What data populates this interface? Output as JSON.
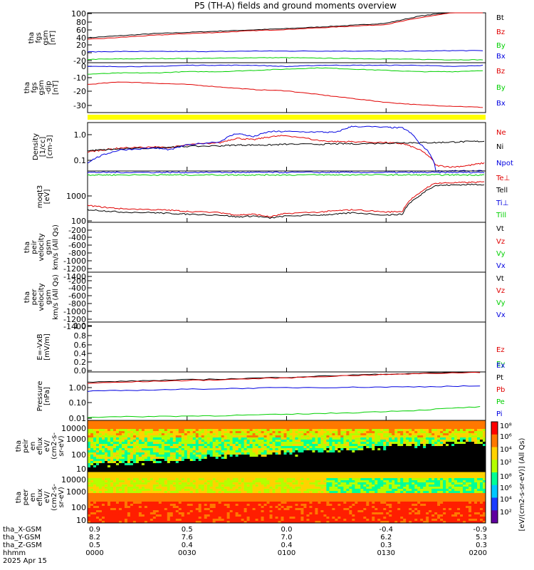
{
  "title": "P5 (TH-A) fields and ground moments overview",
  "time": {
    "x_ticks": [
      {
        "gsm_x": "0.9",
        "gsm_y": "8.2",
        "gsm_z": "0.5",
        "hhmm": "0000"
      },
      {
        "gsm_x": "0.5",
        "gsm_y": "7.6",
        "gsm_z": "0.4",
        "hhmm": "0030"
      },
      {
        "gsm_x": "0.0",
        "gsm_y": "7.0",
        "gsm_z": "0.4",
        "hhmm": "0100"
      },
      {
        "gsm_x": "-0.4",
        "gsm_y": "6.2",
        "gsm_z": "0.3",
        "hhmm": "0130"
      },
      {
        "gsm_x": "-0.9",
        "gsm_y": "5.3",
        "gsm_z": "0.3",
        "hhmm": "0200"
      }
    ],
    "row_labels": [
      "tha_X-GSM",
      "tha_Y-GSM",
      "tha_Z-GSM",
      "hhmm",
      "2025 Apr 15"
    ]
  },
  "colors": {
    "black": "#000000",
    "red": "#e00000",
    "green": "#00d000",
    "blue": "#0000e0",
    "yellow": "#ffff00"
  },
  "chart_data": [
    {
      "type": "line",
      "panel": "fgs_gsm_total",
      "ylabel": [
        "tha",
        "fgs",
        "gsm",
        "[nT]"
      ],
      "yticks": [
        "100",
        "80",
        "60",
        "40",
        "20",
        "0",
        "-20"
      ],
      "ylim": [
        -20,
        100
      ],
      "x": [
        0,
        10,
        20,
        30,
        40,
        50,
        60,
        70,
        80,
        90,
        100,
        110,
        120
      ],
      "series": [
        {
          "name": "Bt",
          "color": "black",
          "values": [
            40,
            45,
            50,
            53,
            56,
            59,
            62,
            66,
            70,
            75,
            92,
            102,
            105
          ]
        },
        {
          "name": "Bz",
          "color": "red",
          "values": [
            36,
            41,
            46,
            50,
            53,
            57,
            60,
            64,
            68,
            72,
            88,
            100,
            104
          ]
        },
        {
          "name": "By",
          "color": "green",
          "values": [
            -12,
            -11,
            -10,
            -10,
            -9,
            -8,
            -8,
            -9,
            -10,
            -11,
            -12,
            -13,
            -13
          ]
        },
        {
          "name": "Bx",
          "color": "blue",
          "values": [
            6,
            7,
            7,
            7,
            7,
            8,
            8,
            8,
            8,
            8,
            8,
            9,
            9
          ]
        }
      ]
    },
    {
      "type": "line",
      "panel": "fgs_gsm_detrended",
      "ylabel": [
        "tha",
        "fgs",
        "gsm",
        "-dip",
        "[nT]"
      ],
      "yticks": [
        "0",
        "-10",
        "-20",
        "-30"
      ],
      "ylim": [
        -37,
        2
      ],
      "x": [
        0,
        10,
        20,
        30,
        40,
        50,
        60,
        70,
        80,
        90,
        100,
        110,
        120
      ],
      "series": [
        {
          "name": "Bz",
          "color": "red",
          "values": [
            -15,
            -13,
            -14,
            -15,
            -17,
            -19,
            -20,
            -23,
            -26,
            -29,
            -31,
            -32,
            -33
          ]
        },
        {
          "name": "By",
          "color": "green",
          "values": [
            -7,
            -6,
            -6,
            -5,
            -5,
            -4,
            -3,
            -2,
            -3,
            -4,
            -5,
            -5,
            -4
          ]
        },
        {
          "name": "Bx",
          "color": "blue",
          "values": [
            -1,
            -1,
            -1,
            0,
            0,
            0,
            -1,
            0,
            0,
            0,
            0,
            -1,
            0
          ]
        }
      ]
    },
    {
      "type": "line",
      "panel": "density",
      "ylabel": [
        "Density",
        "[1/cc]",
        "[cm-3]"
      ],
      "yticks": [
        "1.0",
        "0.1"
      ],
      "yscale": "log",
      "ylim": [
        0.05,
        3
      ],
      "x": [
        0,
        5,
        10,
        20,
        25,
        30,
        40,
        45,
        50,
        55,
        60,
        70,
        75,
        80,
        90,
        95,
        100,
        105,
        110,
        115,
        120
      ],
      "series": [
        {
          "name": "Ne",
          "color": "red",
          "values": [
            0.25,
            0.3,
            0.35,
            0.38,
            0.36,
            0.45,
            0.55,
            0.8,
            0.7,
            0.9,
            1.0,
            0.65,
            0.6,
            0.6,
            0.55,
            0.5,
            0.3,
            0.08,
            0.07,
            0.08,
            0.1
          ]
        },
        {
          "name": "Ni",
          "color": "black",
          "values": [
            0.28,
            0.3,
            0.32,
            0.35,
            0.38,
            0.4,
            0.42,
            0.45,
            0.45,
            0.45,
            0.48,
            0.48,
            0.5,
            0.5,
            0.52,
            0.55,
            0.55,
            0.55,
            0.58,
            0.6,
            0.62
          ]
        },
        {
          "name": "Npot",
          "color": "blue",
          "values": [
            0.1,
            0.2,
            0.3,
            0.35,
            0.3,
            0.45,
            0.6,
            1.2,
            0.9,
            1.4,
            1.4,
            1.35,
            1.3,
            2.2,
            2.0,
            1.9,
            0.5,
            0.05,
            0.05,
            0.05,
            0.05
          ]
        }
      ]
    },
    {
      "type": "line",
      "panel": "temperature",
      "ylabel": [
        "moqt3",
        "[eV]"
      ],
      "yticks": [
        "1000",
        "100"
      ],
      "yscale": "log",
      "ylim": [
        60,
        8000
      ],
      "x": [
        0,
        5,
        10,
        20,
        25,
        30,
        40,
        45,
        50,
        55,
        60,
        70,
        75,
        80,
        90,
        95,
        100,
        105,
        110,
        115,
        120
      ],
      "series": [
        {
          "name": "Te⊥",
          "color": "red",
          "values": [
            300,
            250,
            220,
            200,
            190,
            170,
            150,
            120,
            130,
            100,
            140,
            160,
            180,
            200,
            160,
            170,
            900,
            2500,
            2600,
            2700,
            2800
          ]
        },
        {
          "name": "Tell",
          "color": "black",
          "values": [
            200,
            180,
            160,
            150,
            140,
            130,
            120,
            100,
            110,
            90,
            110,
            120,
            130,
            150,
            120,
            130,
            700,
            2000,
            2100,
            2200,
            2200
          ]
        },
        {
          "name": "Ti⊥",
          "color": "blue",
          "values": [
            7000,
            7000,
            7000,
            7000,
            7000,
            7000,
            7000,
            7000,
            7000,
            7000,
            7000,
            7000,
            7000,
            7000,
            7000,
            7000,
            7000,
            7000,
            7000,
            7000,
            7000
          ]
        },
        {
          "name": "Till",
          "color": "green",
          "values": [
            5500,
            5500,
            5500,
            5500,
            5500,
            5500,
            5500,
            5500,
            5500,
            5500,
            5500,
            5500,
            5500,
            5500,
            5500,
            5500,
            5500,
            5500,
            5500,
            5500,
            5500
          ]
        }
      ]
    },
    {
      "type": "line",
      "panel": "peir_velocity",
      "ylabel": [
        "tha",
        "peir",
        "velocity",
        "gsm",
        "km/s (All Qs)"
      ],
      "yticks": [
        "-200",
        "-400",
        "-600",
        "-800",
        "-1000",
        "-1200",
        "-1400"
      ],
      "ylim": [
        -1450,
        -100
      ],
      "series": [
        {
          "name": "Vt",
          "color": "black"
        },
        {
          "name": "Vz",
          "color": "red"
        },
        {
          "name": "Vy",
          "color": "green"
        },
        {
          "name": "Vx",
          "color": "blue"
        }
      ]
    },
    {
      "type": "line",
      "panel": "peer_velocity",
      "ylabel": [
        "tha",
        "peer",
        "velocity",
        "gsm",
        "km/s (All Qs)"
      ],
      "yticks": [
        "-200",
        "-400",
        "-600",
        "-800",
        "-1000",
        "-1200",
        "-1400"
      ],
      "ylim": [
        -1450,
        -100
      ],
      "series": [
        {
          "name": "Vt",
          "color": "black"
        },
        {
          "name": "Vz",
          "color": "red"
        },
        {
          "name": "Vy",
          "color": "green"
        },
        {
          "name": "Vx",
          "color": "blue"
        }
      ]
    },
    {
      "type": "line",
      "panel": "efield",
      "ylabel": [
        "E=-VxB",
        "[mV/m]"
      ],
      "yticks": [
        "1.0",
        "0.8",
        "0.6",
        "0.4",
        "0.2",
        "0.0"
      ],
      "ylim": [
        0,
        1
      ],
      "series": [
        {
          "name": "Ez",
          "color": "red"
        },
        {
          "name": "Ey",
          "color": "green"
        },
        {
          "name": "Ex",
          "color": "blue"
        }
      ]
    },
    {
      "type": "line",
      "panel": "pressure",
      "ylabel": [
        "Pressure",
        "[nPa]"
      ],
      "yticks": [
        "1.00",
        "0.10",
        "0.01"
      ],
      "yscale": "log",
      "ylim": [
        0.006,
        3
      ],
      "x": [
        0,
        20,
        40,
        60,
        80,
        100,
        120
      ],
      "series": [
        {
          "name": "Pt",
          "color": "black",
          "values": [
            0.8,
            1.0,
            1.2,
            1.5,
            2.0,
            2.5,
            3.0
          ]
        },
        {
          "name": "Pb",
          "color": "red",
          "values": [
            0.7,
            0.9,
            1.1,
            1.4,
            1.9,
            2.4,
            2.9
          ]
        },
        {
          "name": "Pe",
          "color": "green",
          "values": [
            0.009,
            0.01,
            0.011,
            0.013,
            0.016,
            0.022,
            0.035
          ]
        },
        {
          "name": "Pi",
          "color": "blue",
          "values": [
            0.25,
            0.3,
            0.35,
            0.4,
            0.42,
            0.45,
            0.5
          ]
        }
      ]
    },
    {
      "type": "heatmap",
      "panel": "peir_energy_flux",
      "ylabel": [
        "tha",
        "peir",
        "en",
        "eflux",
        "eV/",
        "(cm2-s-",
        "sr-eV)"
      ],
      "yticks": [
        "10000",
        "1000",
        "100",
        "10"
      ]
    },
    {
      "type": "heatmap",
      "panel": "peer_energy_flux",
      "ylabel": [
        "tha",
        "peer",
        "en",
        "eflux",
        "eV/",
        "(cm2-s-",
        "sr-eV)"
      ],
      "yticks": [
        "10000",
        "1000",
        "100",
        "10"
      ]
    }
  ],
  "colorbar": {
    "labels": [
      "10⁸",
      "10⁶",
      "10⁴",
      "10²"
    ],
    "labels2": [
      "10⁸",
      "10⁶",
      "10⁴",
      "10²"
    ],
    "title": "[eV/(cm2-s-sr-eV)] (All Qs)"
  }
}
